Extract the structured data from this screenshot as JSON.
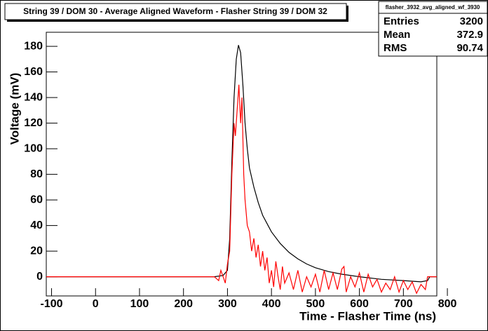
{
  "chart_data": {
    "type": "line",
    "title": "String 39 / DOM 30 - Average Aligned Waveform - Flasher String 39 / DOM 32",
    "x_label": "Time - Flasher Time (ns)",
    "y_label": "Voltage (mV)",
    "xlim": [
      -112,
      776
    ],
    "ylim": [
      -15,
      191
    ],
    "xticks": [
      -100,
      0,
      100,
      200,
      300,
      400,
      500,
      600,
      700,
      800
    ],
    "yticks": [
      0,
      20,
      40,
      60,
      80,
      100,
      120,
      140,
      160,
      180
    ],
    "stats": {
      "title": "flasher_3932_avg_aligned_wf_3930",
      "rows": [
        {
          "label": "Entries",
          "value": 3200
        },
        {
          "label": "Mean",
          "value": 372.9
        },
        {
          "label": "RMS",
          "value": 90.74
        }
      ]
    },
    "series": [
      {
        "color": "#000000",
        "x": [
          -112,
          270,
          290,
          300,
          305,
          310,
          315,
          320,
          325,
          330,
          335,
          340,
          345,
          350,
          360,
          370,
          380,
          400,
          420,
          440,
          460,
          480,
          500,
          530,
          560,
          600,
          650,
          700,
          740,
          755,
          760,
          776
        ],
        "values": [
          0,
          0,
          1,
          5,
          30,
          90,
          140,
          170,
          181,
          175,
          150,
          120,
          100,
          85,
          70,
          58,
          48,
          35,
          26,
          19,
          14,
          10,
          7,
          4,
          2,
          0,
          -2,
          -3,
          -4,
          -3,
          0,
          0
        ]
      },
      {
        "color": "#ff0000",
        "x": [
          -112,
          270,
          280,
          285,
          290,
          295,
          300,
          305,
          310,
          315,
          318,
          322,
          326,
          330,
          333,
          337,
          340,
          345,
          350,
          355,
          360,
          365,
          370,
          375,
          380,
          385,
          390,
          395,
          400,
          405,
          410,
          415,
          420,
          425,
          430,
          440,
          450,
          460,
          470,
          480,
          490,
          500,
          510,
          520,
          530,
          540,
          550,
          560,
          565,
          570,
          580,
          590,
          600,
          610,
          620,
          630,
          640,
          650,
          660,
          670,
          680,
          690,
          700,
          710,
          720,
          730,
          740,
          750,
          755,
          760,
          776
        ],
        "values": [
          0,
          0,
          -3,
          5,
          0,
          -5,
          10,
          20,
          80,
          120,
          110,
          130,
          150,
          120,
          140,
          80,
          60,
          40,
          35,
          20,
          30,
          15,
          25,
          8,
          20,
          5,
          15,
          -5,
          5,
          -8,
          12,
          0,
          -10,
          8,
          -5,
          3,
          -10,
          5,
          -12,
          0,
          -8,
          2,
          -12,
          5,
          -10,
          3,
          -10,
          6,
          8,
          -12,
          0,
          -8,
          3,
          -12,
          2,
          -8,
          -2,
          -12,
          -5,
          -10,
          0,
          -12,
          -3,
          -10,
          -4,
          -13,
          -6,
          -10,
          0,
          0,
          0
        ]
      }
    ]
  }
}
